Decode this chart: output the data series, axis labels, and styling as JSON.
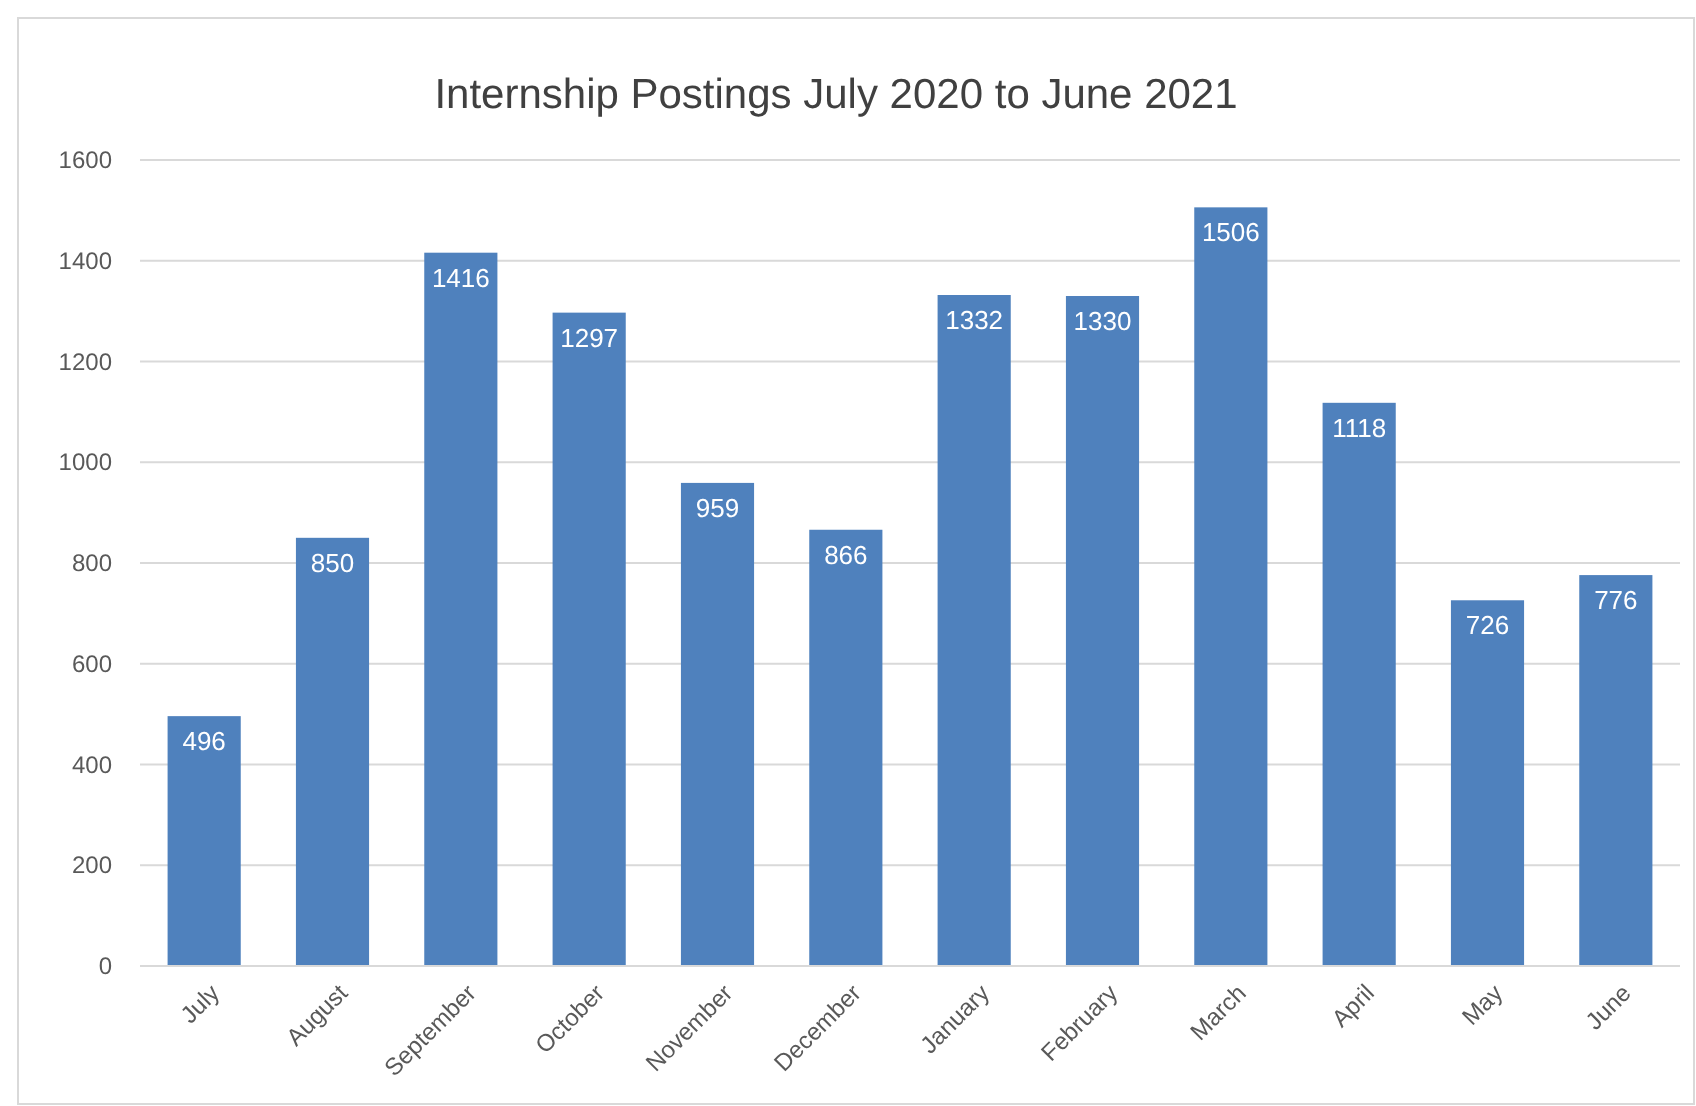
{
  "chart_data": {
    "type": "bar",
    "title": "Internship Postings July 2020 to June 2021",
    "categories": [
      "July",
      "August",
      "September",
      "October",
      "November",
      "December",
      "January",
      "February",
      "March",
      "April",
      "May",
      "June"
    ],
    "values": [
      496,
      850,
      1416,
      1297,
      959,
      866,
      1332,
      1330,
      1506,
      1118,
      726,
      776
    ],
    "color": "#4f81bd",
    "ylim": [
      0,
      1600
    ],
    "yticks": [
      0,
      200,
      400,
      600,
      800,
      1000,
      1200,
      1400,
      1600
    ],
    "grid": true,
    "data_labels": true
  }
}
